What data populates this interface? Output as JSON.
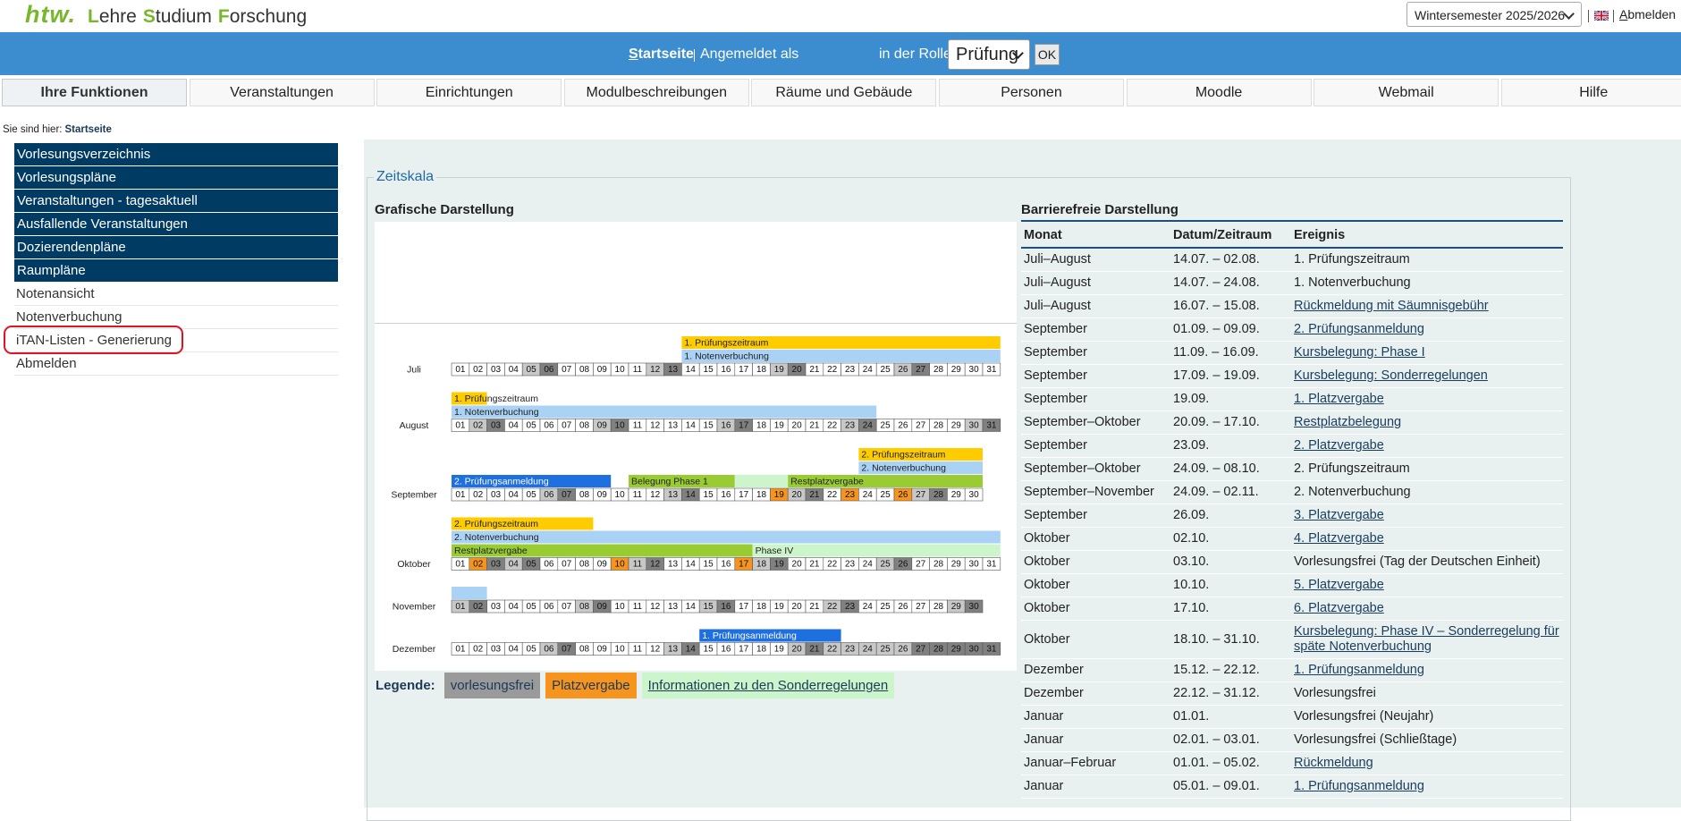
{
  "header": {
    "logo": "htw.",
    "brand": [
      "Lehre",
      "Studium",
      "Forschung"
    ],
    "semester": "Wintersemester 2025/2026",
    "logout": "Abmelden"
  },
  "topbar": {
    "home": "Startseite",
    "logged_in": "Angemeldet als",
    "role_label": "in der Rolle",
    "role": "Prüfung",
    "ok": "OK"
  },
  "nav": [
    "Ihre Funktionen",
    "Veranstaltungen",
    "Einrichtungen",
    "Modulbeschreibungen",
    "Räume und Gebäude",
    "Personen",
    "Moodle",
    "Webmail",
    "Hilfe"
  ],
  "breadcrumb": {
    "label": "Sie sind hier:",
    "current": "Startseite"
  },
  "sidebar": {
    "primary": [
      "Vorlesungsverzeichnis",
      "Vorlesungspläne",
      "Veranstaltungen - tagesaktuell",
      "Ausfallende Veranstaltungen",
      "Dozierendenpläne",
      "Raumpläne"
    ],
    "secondary": [
      "Notenansicht",
      "Notenverbuchung",
      "iTAN-Listen - Generierung",
      "Abmelden"
    ]
  },
  "timeline": {
    "legend_title": "Zeitskala",
    "graphic_title": "Grafische Darstellung",
    "colors": {
      "light": "#c8c8c8",
      "dark": "#808080",
      "orange": "#f7941d"
    },
    "months": [
      {
        "name": "Juli",
        "days": [
          "01",
          "02",
          "03",
          "04",
          "05",
          "06",
          "07",
          "08",
          "09",
          "10",
          "11",
          "12",
          "13",
          "14",
          "15",
          "16",
          "17",
          "18",
          "19",
          "20",
          "21",
          "22",
          "23",
          "24",
          "25",
          "26",
          "27",
          "28",
          "29",
          "30",
          "31"
        ],
        "light": [
          5,
          12,
          19,
          26
        ],
        "dark": [
          6,
          13,
          20,
          27
        ],
        "orange": [],
        "rows": [
          [
            {
              "label": "1. Prüfungszeitraum",
              "color": "#ffcc00",
              "from": 14,
              "to": 31
            }
          ],
          [
            {
              "label": "1. Notenverbuchung",
              "color": "#a9d2f5",
              "from": 14,
              "to": 31
            }
          ]
        ]
      },
      {
        "name": "August",
        "days": [
          "01",
          "02",
          "03",
          "04",
          "05",
          "06",
          "07",
          "08",
          "09",
          "10",
          "11",
          "12",
          "13",
          "14",
          "15",
          "16",
          "17",
          "18",
          "19",
          "20",
          "21",
          "22",
          "23",
          "24",
          "25",
          "26",
          "27",
          "28",
          "29",
          "30",
          "31"
        ],
        "light": [
          2,
          9,
          16,
          23,
          30
        ],
        "dark": [
          3,
          10,
          17,
          24,
          31
        ],
        "orange": [],
        "rows": [
          [
            {
              "label": "1. Prüfungszeitraum",
              "color": "#ffcc00",
              "from": 1,
              "to": 2
            }
          ],
          [
            {
              "label": "1. Notenverbuchung",
              "color": "#a9d2f5",
              "from": 1,
              "to": 24
            }
          ]
        ]
      },
      {
        "name": "September",
        "days": [
          "01",
          "02",
          "03",
          "04",
          "05",
          "06",
          "07",
          "08",
          "09",
          "10",
          "11",
          "12",
          "13",
          "14",
          "15",
          "16",
          "17",
          "18",
          "19",
          "20",
          "21",
          "22",
          "23",
          "24",
          "25",
          "26",
          "27",
          "28",
          "29",
          "30"
        ],
        "light": [
          6,
          13,
          20,
          27
        ],
        "dark": [
          7,
          14,
          21,
          28
        ],
        "orange": [
          19,
          23,
          26
        ],
        "rows": [
          [
            {
              "label": "2. Prüfungszeitraum",
              "color": "#ffcc00",
              "from": 24,
              "to": 30
            }
          ],
          [
            {
              "label": "2. Notenverbuchung",
              "color": "#a9d2f5",
              "from": 24,
              "to": 30
            }
          ],
          [
            {
              "label": "2. Prüfungsanmeldung",
              "color": "#1e6fe0",
              "from": 1,
              "to": 9
            },
            {
              "label": "Belegung Phase 1",
              "color": "#99cc33",
              "from": 11,
              "to": 16
            },
            {
              "label": null,
              "color": "#ccf5cc",
              "from": 17,
              "to": 19
            },
            {
              "label": "Restplatzvergabe",
              "color": "#99cc33",
              "from": 20,
              "to": 30
            }
          ]
        ]
      },
      {
        "name": "Oktober",
        "days": [
          "01",
          "02",
          "03",
          "04",
          "05",
          "06",
          "07",
          "08",
          "09",
          "10",
          "11",
          "12",
          "13",
          "14",
          "15",
          "16",
          "17",
          "18",
          "19",
          "20",
          "21",
          "22",
          "23",
          "24",
          "25",
          "26",
          "27",
          "28",
          "29",
          "30",
          "31"
        ],
        "light": [
          4,
          11,
          18,
          25
        ],
        "dark": [
          3,
          5,
          12,
          19,
          26
        ],
        "orange": [
          2,
          10,
          17
        ],
        "rows": [
          [
            {
              "label": "2. Prüfungszeitraum",
              "color": "#ffcc00",
              "from": 1,
              "to": 8
            }
          ],
          [
            {
              "label": "2. Notenverbuchung",
              "color": "#a9d2f5",
              "from": 1,
              "to": 31
            }
          ],
          [
            {
              "label": "Restplatzvergabe",
              "color": "#99cc33",
              "from": 1,
              "to": 17
            },
            {
              "label": "Phase IV",
              "color": "#ccf5cc",
              "from": 18,
              "to": 31
            }
          ]
        ]
      },
      {
        "name": "November",
        "days": [
          "01",
          "02",
          "03",
          "04",
          "05",
          "06",
          "07",
          "08",
          "09",
          "10",
          "11",
          "12",
          "13",
          "14",
          "15",
          "16",
          "17",
          "18",
          "19",
          "20",
          "21",
          "22",
          "23",
          "24",
          "25",
          "26",
          "27",
          "28",
          "29",
          "30"
        ],
        "light": [
          1,
          8,
          15,
          22,
          29
        ],
        "dark": [
          2,
          9,
          16,
          23,
          30
        ],
        "orange": [],
        "rows": [
          [
            {
              "label": null,
              "color": "#a9d2f5",
              "from": 1,
              "to": 2
            }
          ]
        ]
      },
      {
        "name": "Dezember",
        "days": [
          "01",
          "02",
          "03",
          "04",
          "05",
          "06",
          "07",
          "08",
          "09",
          "10",
          "11",
          "12",
          "13",
          "14",
          "15",
          "16",
          "17",
          "18",
          "19",
          "20",
          "21",
          "22",
          "23",
          "24",
          "25",
          "26",
          "27",
          "28",
          "29",
          "30",
          "31"
        ],
        "light": [
          6,
          13,
          20,
          22,
          23,
          24,
          25,
          26
        ],
        "dark": [
          7,
          14,
          21,
          27,
          28,
          29,
          30,
          31
        ],
        "orange": [],
        "rows": [
          [
            {
              "label": "1. Prüfungsanmeldung",
              "color": "#1e6fe0",
              "from": 15,
              "to": 22
            }
          ]
        ]
      }
    ],
    "legend": {
      "label": "Legende:",
      "items": [
        {
          "text": "vorlesungsfrei",
          "color": "#9a9a9a",
          "link": false
        },
        {
          "text": "Platzvergabe",
          "color": "#f7941d",
          "link": false
        },
        {
          "text": "Informationen zu den Sonderregelungen",
          "color": "#ccf5cc",
          "link": true
        }
      ]
    }
  },
  "table": {
    "title": "Barrierefreie Darstellung",
    "columns": [
      "Monat",
      "Datum/Zeitraum",
      "Ereignis"
    ],
    "rows": [
      {
        "month": "Juli–August",
        "date": "14.07. – 02.08.",
        "event": "1. Prüfungszeitraum",
        "link": false
      },
      {
        "month": "Juli–August",
        "date": "14.07. – 24.08.",
        "event": "1. Notenverbuchung",
        "link": false
      },
      {
        "month": "Juli–August",
        "date": "16.07. – 15.08.",
        "event": "Rückmeldung mit Säumnisgebühr",
        "link": true
      },
      {
        "month": "September",
        "date": "01.09. – 09.09.",
        "event": "2. Prüfungsanmeldung",
        "link": true
      },
      {
        "month": "September",
        "date": "11.09. – 16.09.",
        "event": "Kursbelegung: Phase I",
        "link": true
      },
      {
        "month": "September",
        "date": "17.09. – 19.09.",
        "event": "Kursbelegung: Sonderregelungen",
        "link": true
      },
      {
        "month": "September",
        "date": "19.09.",
        "event": "1. Platzvergabe",
        "link": true
      },
      {
        "month": "September–Oktober",
        "date": "20.09. – 17.10.",
        "event": "Restplatzbelegung",
        "link": true
      },
      {
        "month": "September",
        "date": "23.09.",
        "event": "2. Platzvergabe",
        "link": true
      },
      {
        "month": "September–Oktober",
        "date": "24.09. – 08.10.",
        "event": "2. Prüfungszeitraum",
        "link": false
      },
      {
        "month": "September–November",
        "date": "24.09. – 02.11.",
        "event": "2. Notenverbuchung",
        "link": false
      },
      {
        "month": "September",
        "date": "26.09.",
        "event": "3. Platzvergabe",
        "link": true
      },
      {
        "month": "Oktober",
        "date": "02.10.",
        "event": "4. Platzvergabe",
        "link": true
      },
      {
        "month": "Oktober",
        "date": "03.10.",
        "event": "Vorlesungsfrei (Tag der Deutschen Einheit)",
        "link": false
      },
      {
        "month": "Oktober",
        "date": "10.10.",
        "event": "5. Platzvergabe",
        "link": true
      },
      {
        "month": "Oktober",
        "date": "17.10.",
        "event": "6. Platzvergabe",
        "link": true
      },
      {
        "month": "Oktober",
        "date": "18.10. – 31.10.",
        "event": "Kursbelegung: Phase IV – Sonderregelung für späte Notenverbuchung",
        "link": true
      },
      {
        "month": "Dezember",
        "date": "15.12. – 22.12.",
        "event": "1. Prüfungsanmeldung",
        "link": true
      },
      {
        "month": "Dezember",
        "date": "22.12. – 31.12.",
        "event": "Vorlesungsfrei",
        "link": false
      },
      {
        "month": "Januar",
        "date": "01.01.",
        "event": "Vorlesungsfrei (Neujahr)",
        "link": false
      },
      {
        "month": "Januar",
        "date": "02.01. – 03.01.",
        "event": "Vorlesungsfrei (Schließtage)",
        "link": false
      },
      {
        "month": "Januar–Februar",
        "date": "01.01. – 05.02.",
        "event": "Rückmeldung",
        "link": true
      },
      {
        "month": "Januar",
        "date": "05.01. – 09.01.",
        "event": "1. Prüfungsanmeldung",
        "link": true
      }
    ]
  }
}
